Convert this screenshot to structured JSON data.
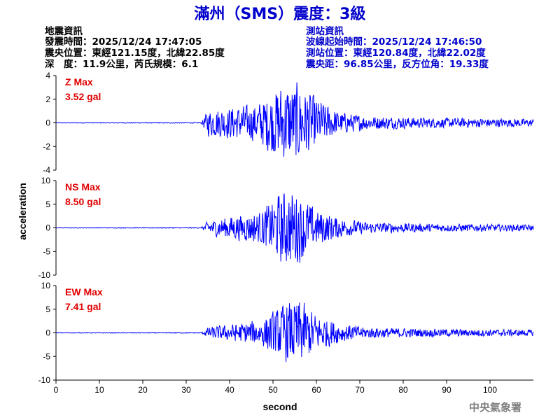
{
  "title": "滿州（SMS）震度：3級",
  "event_info": {
    "heading": "地震資訊",
    "time": "發震時間：2025/12/24 17:47:05",
    "epicenter": "震央位置：東經121.15度，北緯22.85度",
    "depth_magnitude": "深　度：11.9公里，芮氏規模：6.1"
  },
  "station_info": {
    "heading": "測站資訊",
    "wave_start": "波線起始時間：2025/12/24 17:46:50",
    "location": "測站位置：東經120.84度，北緯22.02度",
    "distance": "震央距：96.85公里，反方位角：19.33度"
  },
  "agency": "中央氣象署",
  "chart_data": {
    "type": "line",
    "xlabel": "second",
    "ylabel": "acceleration",
    "xlim": [
      0,
      110
    ],
    "x_ticks": [
      0,
      10,
      20,
      30,
      40,
      50,
      60,
      70,
      80,
      90,
      100
    ],
    "x_tick_labels": [
      "0",
      "10",
      "20",
      "30",
      "40",
      "50",
      "60",
      "70",
      "80",
      "90",
      "100"
    ],
    "line_color": "#0000ff",
    "label_color": "#e00000",
    "panels": [
      {
        "component": "Z",
        "max_title": "Z Max",
        "max_value": "3.52 gal",
        "ylim": [
          -4,
          4
        ],
        "y_ticks": [
          -4,
          -2,
          0,
          2,
          4
        ],
        "y_tick_labels": [
          "-4",
          "-2",
          "0",
          "2",
          "4"
        ],
        "envelope": [
          [
            0,
            0.02
          ],
          [
            33.5,
            0.04
          ],
          [
            35,
            1.2
          ],
          [
            40,
            1.4
          ],
          [
            46,
            1.6
          ],
          [
            52,
            3.4
          ],
          [
            56,
            3.5
          ],
          [
            60,
            2.2
          ],
          [
            65,
            1.0
          ],
          [
            72,
            0.6
          ],
          [
            85,
            0.45
          ],
          [
            110,
            0.35
          ]
        ]
      },
      {
        "component": "NS",
        "max_title": "NS Max",
        "max_value": "8.50 gal",
        "ylim": [
          -10,
          10
        ],
        "y_ticks": [
          -10,
          -5,
          0,
          5,
          10
        ],
        "y_tick_labels": [
          "-10",
          "-5",
          "0",
          "5",
          "10"
        ],
        "envelope": [
          [
            0,
            0.05
          ],
          [
            33.5,
            0.1
          ],
          [
            35,
            1.5
          ],
          [
            40,
            2.5
          ],
          [
            47,
            3.5
          ],
          [
            52,
            8.0
          ],
          [
            55,
            8.5
          ],
          [
            60,
            4.0
          ],
          [
            66,
            2.0
          ],
          [
            72,
            1.2
          ],
          [
            85,
            0.9
          ],
          [
            110,
            0.7
          ]
        ]
      },
      {
        "component": "EW",
        "max_title": "EW Max",
        "max_value": "7.41 gal",
        "ylim": [
          -10,
          10
        ],
        "y_ticks": [
          -10,
          -5,
          0,
          5,
          10
        ],
        "y_tick_labels": [
          "-10",
          "-5",
          "0",
          "5",
          "10"
        ],
        "envelope": [
          [
            0,
            0.05
          ],
          [
            33.5,
            0.1
          ],
          [
            35,
            1.2
          ],
          [
            40,
            1.8
          ],
          [
            47,
            2.8
          ],
          [
            53,
            6.5
          ],
          [
            56,
            7.4
          ],
          [
            60,
            4.0
          ],
          [
            66,
            2.0
          ],
          [
            72,
            1.2
          ],
          [
            85,
            0.9
          ],
          [
            110,
            0.7
          ]
        ]
      }
    ]
  }
}
